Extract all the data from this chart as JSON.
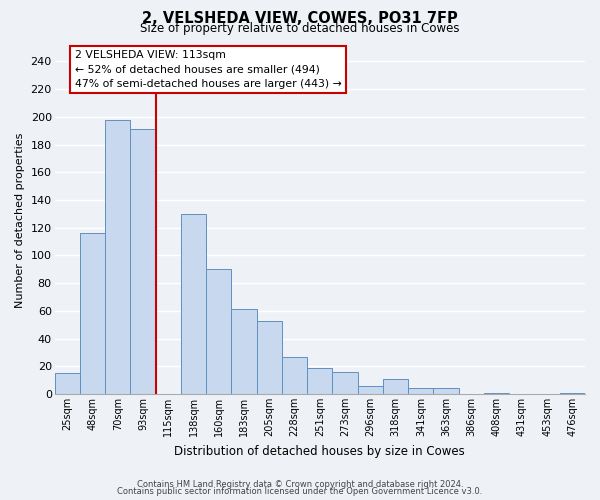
{
  "title": "2, VELSHEDA VIEW, COWES, PO31 7FP",
  "subtitle": "Size of property relative to detached houses in Cowes",
  "xlabel": "Distribution of detached houses by size in Cowes",
  "ylabel": "Number of detached properties",
  "bar_color": "#c8d8ee",
  "bar_edge_color": "#6090c0",
  "categories": [
    "25sqm",
    "48sqm",
    "70sqm",
    "93sqm",
    "115sqm",
    "138sqm",
    "160sqm",
    "183sqm",
    "205sqm",
    "228sqm",
    "251sqm",
    "273sqm",
    "296sqm",
    "318sqm",
    "341sqm",
    "363sqm",
    "386sqm",
    "408sqm",
    "431sqm",
    "453sqm",
    "476sqm"
  ],
  "values": [
    15,
    116,
    198,
    191,
    0,
    130,
    90,
    61,
    53,
    27,
    19,
    16,
    6,
    11,
    4,
    4,
    0,
    1,
    0,
    0,
    1
  ],
  "ylim": [
    0,
    250
  ],
  "yticks": [
    0,
    20,
    40,
    60,
    80,
    100,
    120,
    140,
    160,
    180,
    200,
    220,
    240
  ],
  "vline_color": "#cc0000",
  "annotation_line1": "2 VELSHEDA VIEW: 113sqm",
  "annotation_line2": "← 52% of detached houses are smaller (494)",
  "annotation_line3": "47% of semi-detached houses are larger (443) →",
  "annotation_box_color": "#ffffff",
  "annotation_box_edge": "#cc0000",
  "footer_line1": "Contains HM Land Registry data © Crown copyright and database right 2024.",
  "footer_line2": "Contains public sector information licensed under the Open Government Licence v3.0.",
  "background_color": "#eef2f7"
}
